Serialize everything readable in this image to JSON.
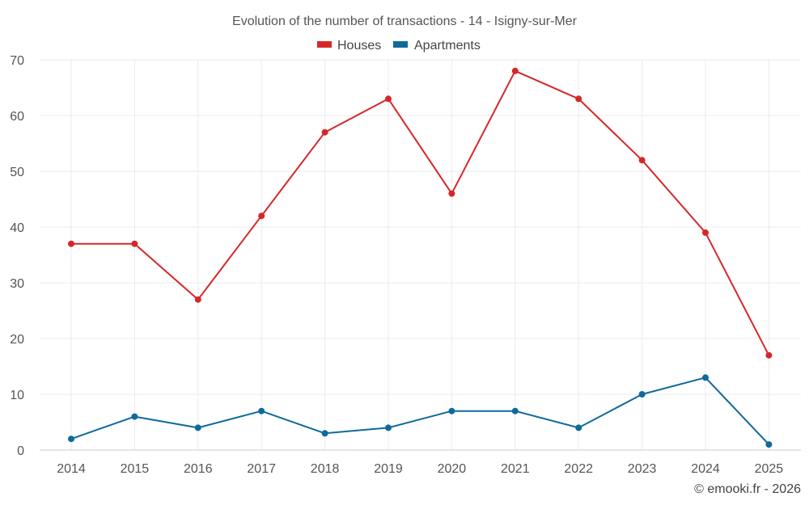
{
  "chart_data": {
    "type": "line",
    "title": "Evolution of the number of transactions - 14 - Isigny-sur-Mer",
    "categories": [
      "2014",
      "2015",
      "2016",
      "2017",
      "2018",
      "2019",
      "2020",
      "2021",
      "2022",
      "2023",
      "2024",
      "2025"
    ],
    "series": [
      {
        "name": "Houses",
        "color": "#d62728",
        "values": [
          37,
          37,
          27,
          42,
          57,
          63,
          46,
          68,
          63,
          52,
          39,
          17
        ]
      },
      {
        "name": "Apartments",
        "color": "#0f6a9c",
        "values": [
          2,
          6,
          4,
          7,
          3,
          4,
          7,
          7,
          4,
          10,
          13,
          1
        ]
      }
    ],
    "ylim": [
      0,
      70
    ],
    "yticks": [
      0,
      10,
      20,
      30,
      40,
      50,
      60,
      70
    ],
    "xlabel": "",
    "ylabel": "",
    "legend_position": "top-center",
    "grid": true
  },
  "credit": "© emooki.fr - 2026"
}
